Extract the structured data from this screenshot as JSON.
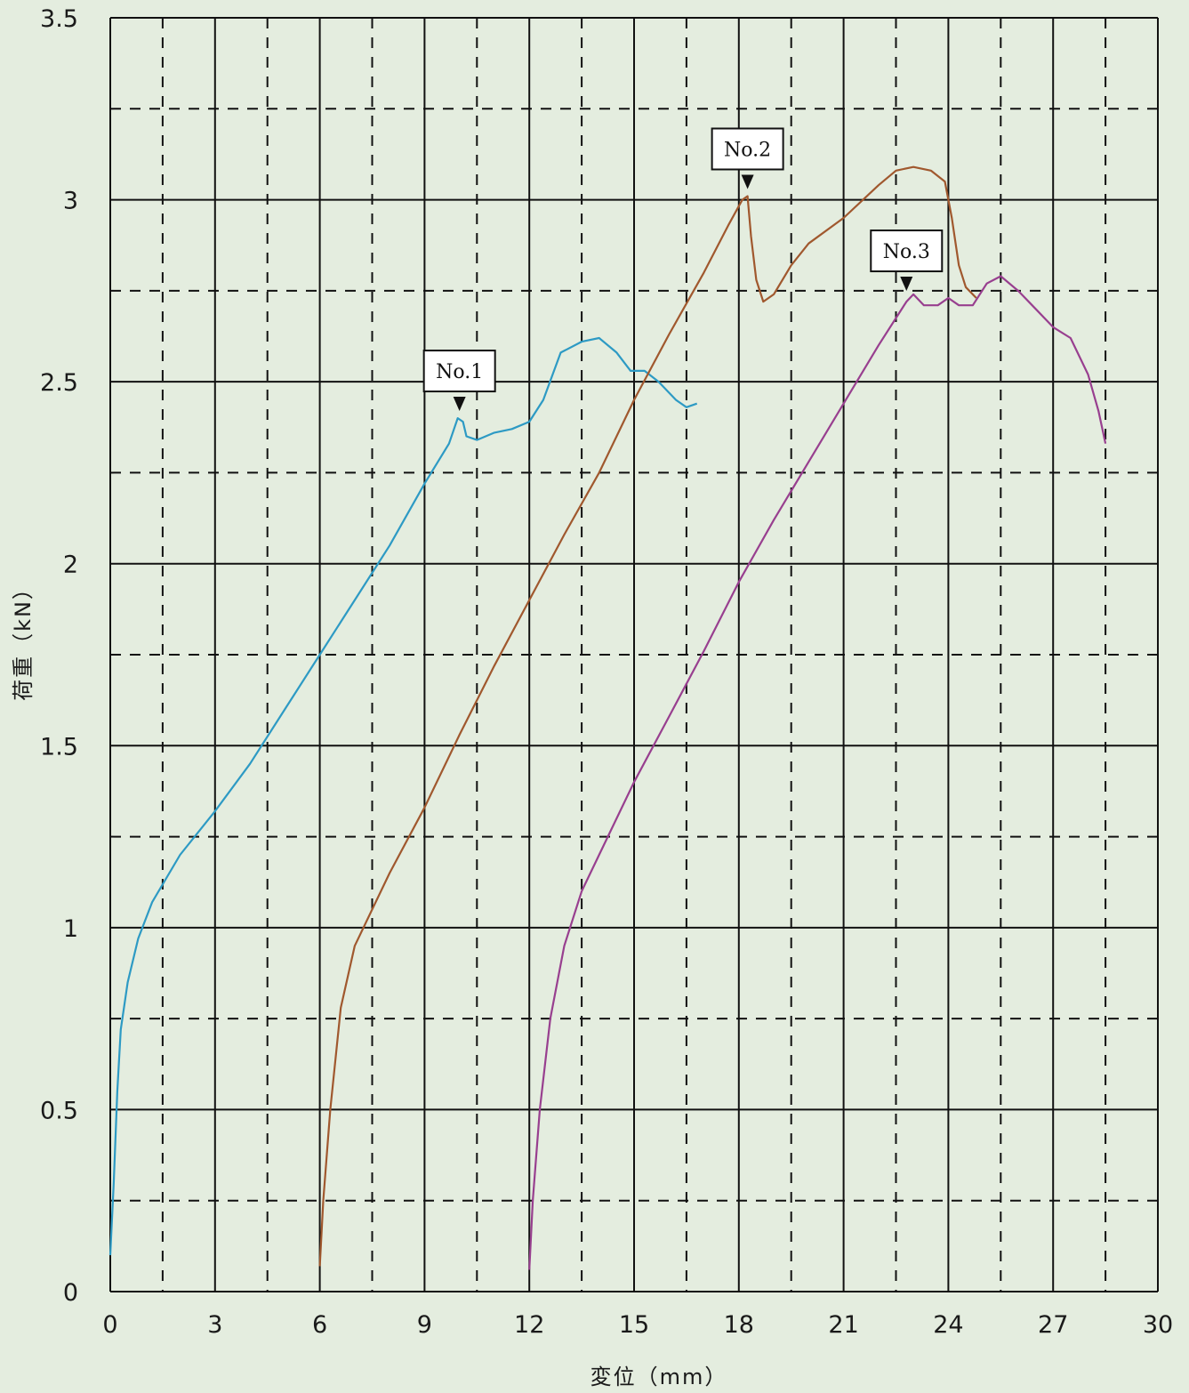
{
  "chart_data": {
    "type": "line",
    "title": "",
    "xlabel": "変位（mm）",
    "ylabel": "荷重（kN）",
    "xlim": [
      0,
      30
    ],
    "ylim": [
      0,
      3.5
    ],
    "xticks": [
      0,
      3,
      6,
      9,
      12,
      15,
      18,
      21,
      24,
      27,
      30
    ],
    "yticks": [
      0,
      0.5,
      1,
      1.5,
      2,
      2.5,
      3,
      3.5
    ],
    "xtick_labels": [
      "0",
      "3",
      "6",
      "9",
      "12",
      "15",
      "18",
      "21",
      "24",
      "27",
      "30"
    ],
    "ytick_labels": [
      "0",
      "0.5",
      "1",
      "1.5",
      "2",
      "2.5",
      "3",
      "3.5"
    ],
    "grid": {
      "major": "solid",
      "minor": "dashed"
    },
    "series": [
      {
        "color": "#2d9ac4",
        "points": [
          [
            0,
            0.1
          ],
          [
            0.1,
            0.3
          ],
          [
            0.2,
            0.55
          ],
          [
            0.3,
            0.72
          ],
          [
            0.5,
            0.85
          ],
          [
            0.8,
            0.97
          ],
          [
            1.2,
            1.07
          ],
          [
            2,
            1.2
          ],
          [
            3,
            1.32
          ],
          [
            4,
            1.45
          ],
          [
            5,
            1.6
          ],
          [
            6,
            1.75
          ],
          [
            7,
            1.9
          ],
          [
            8,
            2.05
          ],
          [
            9,
            2.22
          ],
          [
            9.7,
            2.33
          ],
          [
            9.95,
            2.4
          ],
          [
            10.1,
            2.39
          ],
          [
            10.2,
            2.35
          ],
          [
            10.5,
            2.34
          ],
          [
            11,
            2.36
          ],
          [
            11.5,
            2.37
          ],
          [
            12,
            2.39
          ],
          [
            12.4,
            2.45
          ],
          [
            12.9,
            2.58
          ],
          [
            13.5,
            2.61
          ],
          [
            14,
            2.62
          ],
          [
            14.5,
            2.58
          ],
          [
            14.9,
            2.53
          ],
          [
            15.3,
            2.53
          ],
          [
            15.7,
            2.5
          ],
          [
            16.2,
            2.45
          ],
          [
            16.5,
            2.43
          ],
          [
            16.8,
            2.44
          ]
        ]
      },
      {
        "color": "#a0582e",
        "points": [
          [
            6,
            0.07
          ],
          [
            6.1,
            0.25
          ],
          [
            6.3,
            0.5
          ],
          [
            6.6,
            0.78
          ],
          [
            7,
            0.95
          ],
          [
            7.5,
            1.05
          ],
          [
            8,
            1.15
          ],
          [
            9,
            1.33
          ],
          [
            10,
            1.53
          ],
          [
            11,
            1.72
          ],
          [
            12,
            1.9
          ],
          [
            13,
            2.08
          ],
          [
            14,
            2.25
          ],
          [
            15,
            2.45
          ],
          [
            16,
            2.63
          ],
          [
            17,
            2.8
          ],
          [
            17.7,
            2.93
          ],
          [
            18.1,
            3.0
          ],
          [
            18.25,
            3.01
          ],
          [
            18.35,
            2.9
          ],
          [
            18.5,
            2.78
          ],
          [
            18.7,
            2.72
          ],
          [
            19,
            2.74
          ],
          [
            19.5,
            2.82
          ],
          [
            20,
            2.88
          ],
          [
            21,
            2.95
          ],
          [
            22,
            3.04
          ],
          [
            22.5,
            3.08
          ],
          [
            23,
            3.09
          ],
          [
            23.5,
            3.08
          ],
          [
            23.9,
            3.05
          ],
          [
            24.1,
            2.95
          ],
          [
            24.3,
            2.82
          ],
          [
            24.5,
            2.76
          ],
          [
            24.8,
            2.73
          ]
        ]
      },
      {
        "color": "#983f8f",
        "points": [
          [
            12,
            0.06
          ],
          [
            12.1,
            0.25
          ],
          [
            12.3,
            0.5
          ],
          [
            12.6,
            0.75
          ],
          [
            13,
            0.95
          ],
          [
            13.5,
            1.1
          ],
          [
            14,
            1.2
          ],
          [
            15,
            1.4
          ],
          [
            16,
            1.58
          ],
          [
            17,
            1.76
          ],
          [
            18,
            1.95
          ],
          [
            19,
            2.12
          ],
          [
            20,
            2.28
          ],
          [
            21,
            2.44
          ],
          [
            22,
            2.6
          ],
          [
            22.8,
            2.72
          ],
          [
            23,
            2.74
          ],
          [
            23.3,
            2.71
          ],
          [
            23.7,
            2.71
          ],
          [
            24,
            2.73
          ],
          [
            24.3,
            2.71
          ],
          [
            24.7,
            2.71
          ],
          [
            25.1,
            2.77
          ],
          [
            25.5,
            2.79
          ],
          [
            26,
            2.75
          ],
          [
            26.5,
            2.7
          ],
          [
            27,
            2.65
          ],
          [
            27.5,
            2.62
          ],
          [
            28,
            2.52
          ],
          [
            28.3,
            2.42
          ],
          [
            28.5,
            2.33
          ]
        ]
      }
    ],
    "annotations": [
      {
        "label": "No.1",
        "x": 10.0,
        "y": 2.4
      },
      {
        "label": "No.2",
        "x": 18.25,
        "y": 3.01
      },
      {
        "label": "No.3",
        "x": 22.8,
        "y": 2.73
      }
    ]
  }
}
